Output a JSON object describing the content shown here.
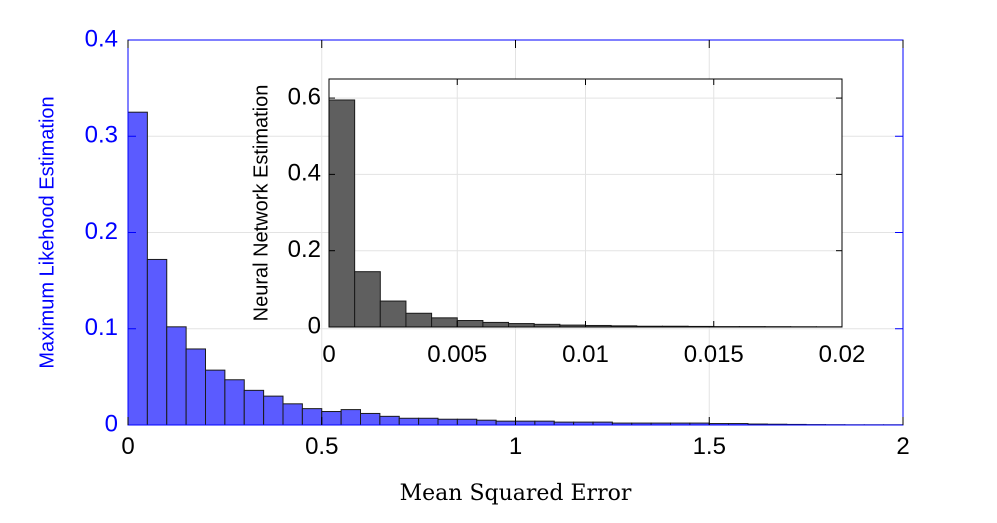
{
  "chart_data": [
    {
      "type": "bar",
      "role": "main",
      "xlabel": "Mean Squared Error",
      "ylabel": "Maximum Likehood Estimation",
      "xlim": [
        0,
        2
      ],
      "ylim": [
        0,
        0.4
      ],
      "xticks": [
        0,
        0.5,
        1,
        1.5,
        2
      ],
      "xtick_labels": [
        "0",
        "0.5",
        "1",
        "1.5",
        "2"
      ],
      "yticks": [
        0,
        0.1,
        0.2,
        0.3,
        0.4
      ],
      "ytick_labels": [
        "0",
        "0.1",
        "0.2",
        "0.3",
        "0.4"
      ],
      "grid": true,
      "bin_width": 0.05,
      "bin_edges_start": 0,
      "values": [
        0.325,
        0.172,
        0.102,
        0.079,
        0.057,
        0.047,
        0.036,
        0.03,
        0.022,
        0.017,
        0.014,
        0.016,
        0.012,
        0.009,
        0.007,
        0.007,
        0.006,
        0.006,
        0.005,
        0.004,
        0.004,
        0.004,
        0.003,
        0.003,
        0.003,
        0.002,
        0.002,
        0.002,
        0.002,
        0.002,
        0.0015,
        0.0015,
        0.001,
        0.0008,
        0.0006,
        0.0004,
        0.0003,
        0.0002,
        0.0002,
        0.0002
      ],
      "bar_color": "#5b5bff",
      "axis_color": "#0000ff"
    },
    {
      "type": "bar",
      "role": "inset",
      "xlabel": "",
      "ylabel": "Neural Network Estimation",
      "xlim": [
        0,
        0.02
      ],
      "ylim": [
        0,
        0.65
      ],
      "xticks": [
        0,
        0.005,
        0.01,
        0.015,
        0.02
      ],
      "xtick_labels": [
        "0",
        "0.005",
        "0.01",
        "0.015",
        "0.02"
      ],
      "yticks": [
        0,
        0.2,
        0.4,
        0.6
      ],
      "ytick_labels": [
        "0",
        "0.2",
        "0.4",
        "0.6"
      ],
      "grid": true,
      "bin_width": 0.001,
      "bin_edges_start": 0,
      "values": [
        0.595,
        0.145,
        0.068,
        0.036,
        0.024,
        0.017,
        0.012,
        0.009,
        0.007,
        0.005,
        0.004,
        0.003,
        0.002,
        0.002,
        0.0015,
        0.001,
        0.001,
        0.0008,
        0.0006,
        0.0005
      ],
      "bar_color": "#5f5f5f",
      "axis_color": "#000000"
    }
  ]
}
